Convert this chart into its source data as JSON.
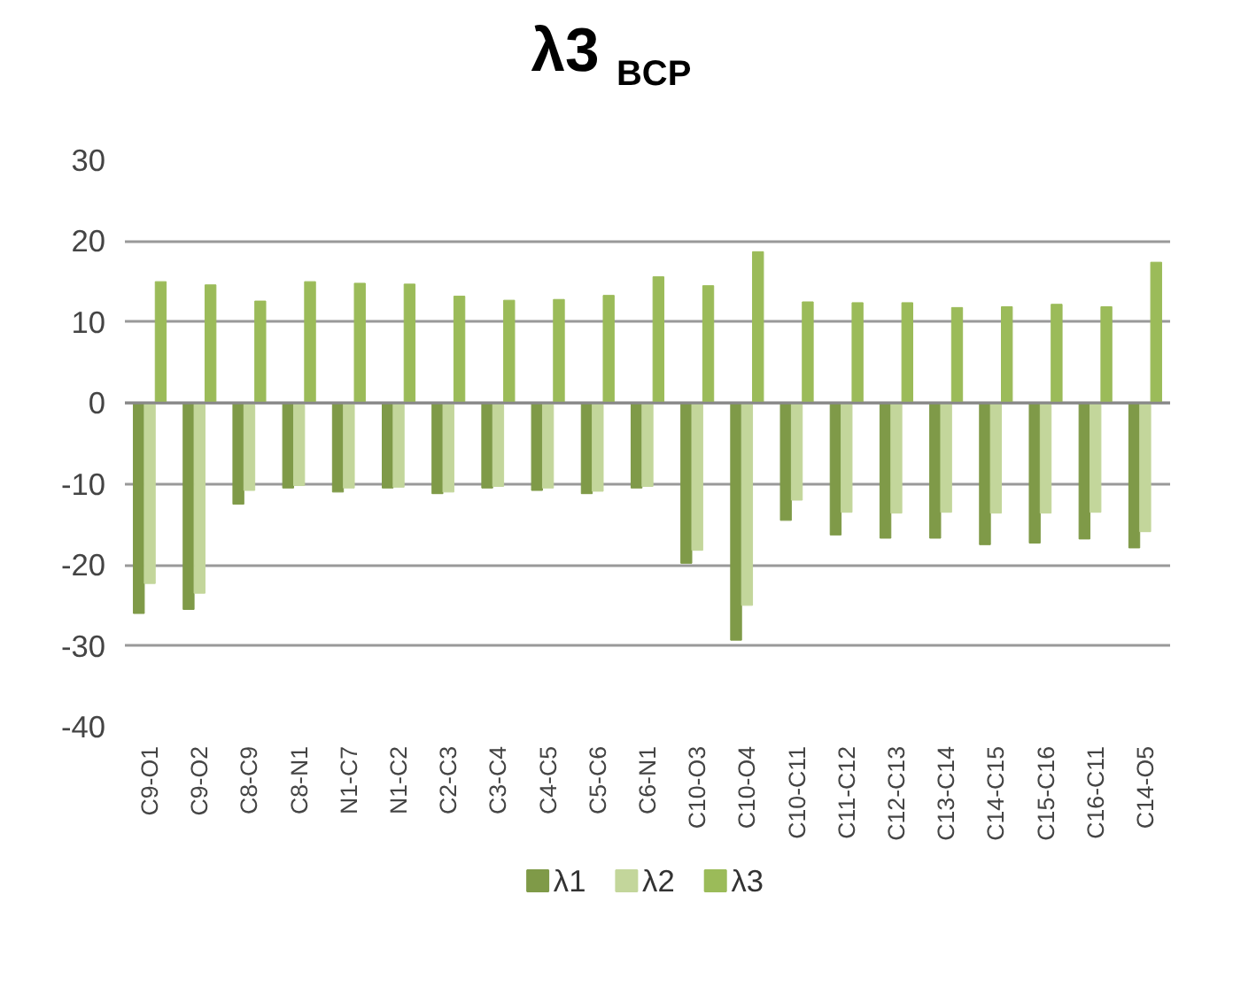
{
  "chart_data": {
    "type": "bar",
    "title": "λ3 $_{BCP}$",
    "categories": [
      "C9-O1",
      "C9-O2",
      "C8-C9",
      "C8-N1",
      "N1-C7",
      "N1-C2",
      "C2-C3",
      "C3-C4",
      "C4-C5",
      "C5-C6",
      "C6-N1",
      "C10-O3",
      "C10-O4",
      "C10-C11",
      "C11-C12",
      "C12-C13",
      "C13-C14",
      "C14-C15",
      "C15-C16",
      "C16-C11",
      "C14-O5"
    ],
    "series": [
      {
        "name": "λ1",
        "color": "#7f9a48",
        "values": [
          -26.0,
          -25.5,
          -12.5,
          -10.5,
          -11.0,
          -10.5,
          -11.2,
          -10.5,
          -10.8,
          -11.2,
          -10.5,
          -19.8,
          -29.3,
          -14.5,
          -16.3,
          -16.7,
          -16.7,
          -17.5,
          -17.3,
          -16.8,
          -17.9
        ]
      },
      {
        "name": "λ2",
        "color": "#c3d69b",
        "values": [
          -22.3,
          -23.5,
          -10.8,
          -10.2,
          -10.5,
          -10.4,
          -11.0,
          -10.3,
          -10.5,
          -10.9,
          -10.3,
          -18.2,
          -25.0,
          -12.0,
          -13.5,
          -13.6,
          -13.5,
          -13.6,
          -13.6,
          -13.5,
          -15.9
        ]
      },
      {
        "name": "λ3",
        "color": "#9bbb59",
        "values": [
          15.0,
          14.6,
          12.6,
          15.0,
          14.8,
          14.7,
          13.2,
          12.7,
          12.8,
          13.3,
          15.6,
          14.5,
          18.7,
          12.5,
          12.4,
          12.4,
          11.8,
          11.9,
          12.2,
          11.9,
          17.4
        ]
      }
    ],
    "ylim": [
      -40,
      30
    ],
    "yticks": [
      -40,
      -30,
      -20,
      -10,
      0,
      10,
      20,
      30
    ],
    "grid": "y",
    "legend": "bottom"
  }
}
